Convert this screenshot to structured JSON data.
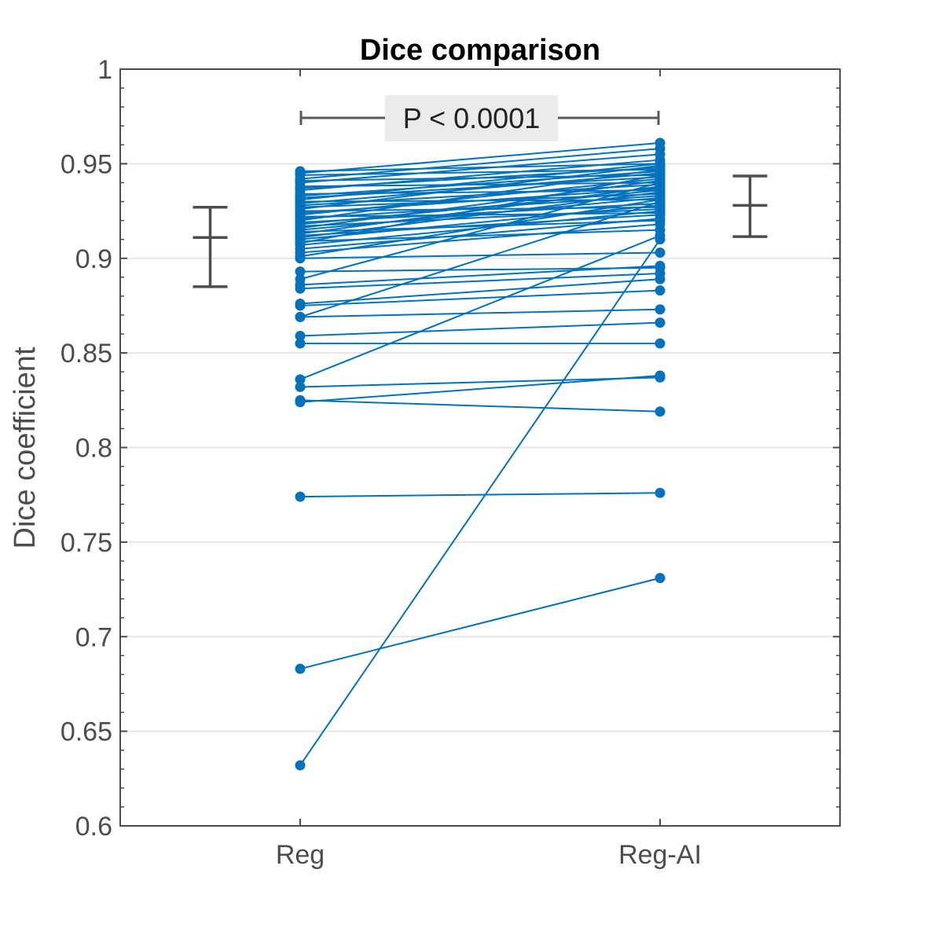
{
  "chart_data": {
    "type": "line",
    "title": "Dice comparison",
    "xlabel": "",
    "ylabel": "Dice coefficient",
    "categories": [
      "Reg",
      "Reg-AI"
    ],
    "xlim": [
      0.5,
      2.5
    ],
    "ylim": [
      0.6,
      1.0
    ],
    "yticks": [
      "0.6",
      "0.65",
      "0.7",
      "0.75",
      "0.8",
      "0.85",
      "0.9",
      "0.95",
      "1"
    ],
    "grid": "horizontal",
    "series_color": "#0072BD",
    "annotation": "P < 0.0001",
    "pairs": [
      [
        0.632,
        0.91
      ],
      [
        0.683,
        0.731
      ],
      [
        0.774,
        0.776
      ],
      [
        0.825,
        0.819
      ],
      [
        0.824,
        0.838
      ],
      [
        0.832,
        0.837
      ],
      [
        0.836,
        0.912
      ],
      [
        0.855,
        0.855
      ],
      [
        0.859,
        0.866
      ],
      [
        0.869,
        0.873
      ],
      [
        0.869,
        0.93
      ],
      [
        0.875,
        0.883
      ],
      [
        0.876,
        0.889
      ],
      [
        0.884,
        0.892
      ],
      [
        0.886,
        0.896
      ],
      [
        0.889,
        0.94
      ],
      [
        0.893,
        0.895
      ],
      [
        0.9,
        0.903
      ],
      [
        0.901,
        0.931
      ],
      [
        0.903,
        0.918
      ],
      [
        0.905,
        0.921
      ],
      [
        0.907,
        0.925
      ],
      [
        0.908,
        0.944
      ],
      [
        0.909,
        0.915
      ],
      [
        0.91,
        0.928
      ],
      [
        0.911,
        0.935
      ],
      [
        0.912,
        0.923
      ],
      [
        0.913,
        0.938
      ],
      [
        0.914,
        0.92
      ],
      [
        0.915,
        0.932
      ],
      [
        0.916,
        0.941
      ],
      [
        0.917,
        0.926
      ],
      [
        0.918,
        0.936
      ],
      [
        0.919,
        0.929
      ],
      [
        0.92,
        0.947
      ],
      [
        0.921,
        0.933
      ],
      [
        0.922,
        0.924
      ],
      [
        0.923,
        0.942
      ],
      [
        0.924,
        0.937
      ],
      [
        0.925,
        0.927
      ],
      [
        0.926,
        0.949
      ],
      [
        0.927,
        0.934
      ],
      [
        0.928,
        0.939
      ],
      [
        0.929,
        0.945
      ],
      [
        0.93,
        0.931
      ],
      [
        0.931,
        0.95
      ],
      [
        0.932,
        0.943
      ],
      [
        0.933,
        0.946
      ],
      [
        0.934,
        0.936
      ],
      [
        0.936,
        0.952
      ],
      [
        0.937,
        0.948
      ],
      [
        0.938,
        0.94
      ],
      [
        0.94,
        0.955
      ],
      [
        0.941,
        0.944
      ],
      [
        0.942,
        0.958
      ],
      [
        0.944,
        0.947
      ],
      [
        0.945,
        0.961
      ],
      [
        0.946,
        0.95
      ]
    ],
    "error_bars": [
      {
        "group": "Reg",
        "mean": 0.911,
        "lower": 0.885,
        "upper": 0.927
      },
      {
        "group": "Reg-AI",
        "mean": 0.928,
        "lower": 0.9115,
        "upper": 0.9435
      }
    ]
  }
}
